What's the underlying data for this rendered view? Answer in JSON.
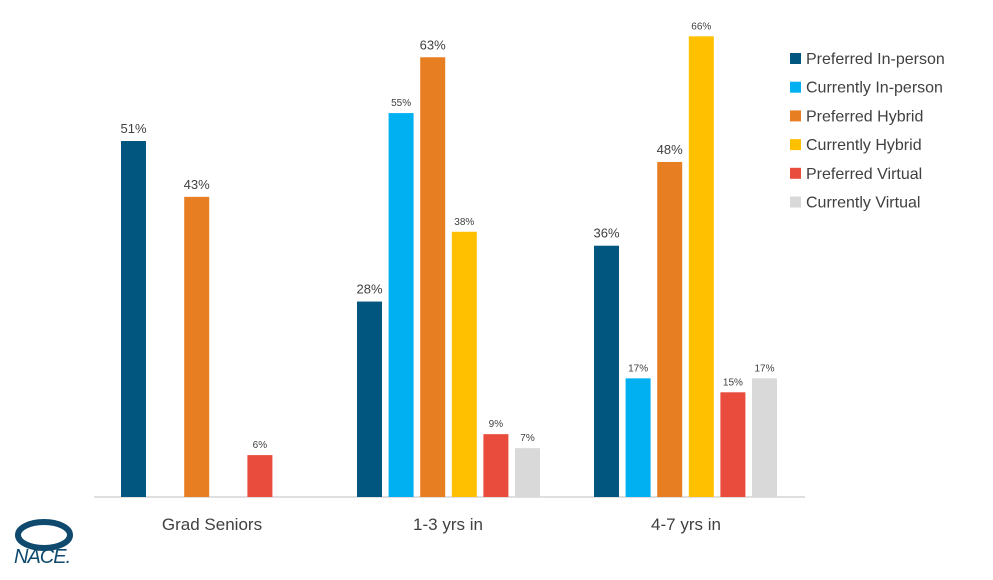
{
  "chart_data": {
    "type": "bar",
    "categories": [
      "Grad Seniors",
      "1-3 yrs in",
      "4-7 yrs in"
    ],
    "ylim": [
      0,
      70
    ],
    "grid": false,
    "legend_position": "top-right",
    "series": [
      {
        "name": "Preferred In-person",
        "color": "#00567f",
        "values": [
          51,
          28,
          36
        ],
        "labels": [
          "51%",
          "28%",
          "36%"
        ]
      },
      {
        "name": "Currently In-person",
        "color": "#00b0f0",
        "values": [
          null,
          55,
          17
        ],
        "labels": [
          null,
          "55%",
          "17%"
        ]
      },
      {
        "name": "Preferred Hybrid",
        "color": "#e87e22",
        "values": [
          43,
          63,
          48
        ],
        "labels": [
          "43%",
          "63%",
          "48%"
        ]
      },
      {
        "name": "Currently Hybrid",
        "color": "#ffc000",
        "values": [
          null,
          38,
          66
        ],
        "labels": [
          null,
          "38%",
          "66%"
        ]
      },
      {
        "name": "Preferred Virtual",
        "color": "#e94b3c",
        "values": [
          6,
          9,
          15
        ],
        "labels": [
          "6%",
          "9%",
          "15%"
        ]
      },
      {
        "name": "Currently Virtual",
        "color": "#d9d9d9",
        "values": [
          null,
          7,
          17
        ],
        "labels": [
          null,
          "7%",
          "17%"
        ]
      }
    ]
  },
  "logo": {
    "text": "NACE."
  }
}
